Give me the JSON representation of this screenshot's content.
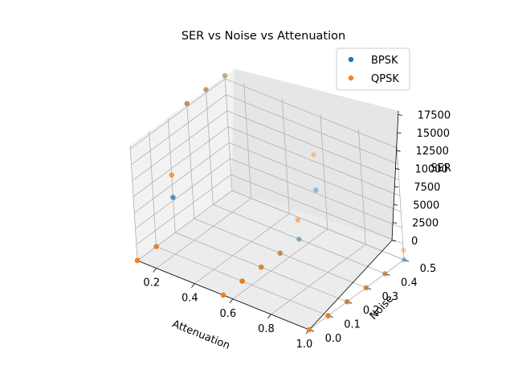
{
  "chart_data": {
    "type": "scatter",
    "projection": "3d",
    "title": "SER vs Noise vs Attenuation",
    "xlabel": "Attenuation",
    "ylabel": "Noise",
    "zlabel": "SER",
    "xlim": [
      0.1,
      1.0
    ],
    "ylim": [
      0.0,
      0.5
    ],
    "zlim": [
      0,
      18000
    ],
    "xticks": [
      "0.2",
      "0.4",
      "0.6",
      "0.8",
      "1.0"
    ],
    "yticks": [
      "0.0",
      "0.1",
      "0.2",
      "0.3",
      "0.4",
      "0.5"
    ],
    "zticks": [
      "0",
      "2500",
      "5000",
      "7500",
      "10000",
      "12500",
      "15000",
      "17500"
    ],
    "grid": true,
    "legend_position": "top-right",
    "series": [
      {
        "name": "BPSK",
        "color": "#1f77b4",
        "points": [
          {
            "x": 0.1,
            "y": 0.0,
            "z": 0
          },
          {
            "x": 0.1,
            "y": 0.1,
            "z": 0
          },
          {
            "x": 0.1,
            "y": 0.2,
            "z": 5500
          },
          {
            "x": 0.1,
            "y": 0.3,
            "z": 18000
          },
          {
            "x": 0.1,
            "y": 0.4,
            "z": 18000
          },
          {
            "x": 0.1,
            "y": 0.5,
            "z": 18000
          },
          {
            "x": 0.55,
            "y": 0.0,
            "z": 0
          },
          {
            "x": 0.55,
            "y": 0.1,
            "z": 0
          },
          {
            "x": 0.55,
            "y": 0.2,
            "z": 0
          },
          {
            "x": 0.55,
            "y": 0.3,
            "z": 0
          },
          {
            "x": 0.55,
            "y": 0.4,
            "z": 0
          },
          {
            "x": 0.55,
            "y": 0.5,
            "z": 5500
          },
          {
            "x": 1.0,
            "y": 0.0,
            "z": 0
          },
          {
            "x": 1.0,
            "y": 0.1,
            "z": 0
          },
          {
            "x": 1.0,
            "y": 0.2,
            "z": 0
          },
          {
            "x": 1.0,
            "y": 0.3,
            "z": 0
          },
          {
            "x": 1.0,
            "y": 0.4,
            "z": 0
          },
          {
            "x": 1.0,
            "y": 0.5,
            "z": 0
          }
        ]
      },
      {
        "name": "QPSK",
        "color": "#ff7f0e",
        "points": [
          {
            "x": 0.1,
            "y": 0.0,
            "z": 0
          },
          {
            "x": 0.1,
            "y": 0.1,
            "z": 0
          },
          {
            "x": 0.1,
            "y": 0.2,
            "z": 9000
          },
          {
            "x": 0.1,
            "y": 0.3,
            "z": 18000
          },
          {
            "x": 0.1,
            "y": 0.4,
            "z": 18000
          },
          {
            "x": 0.1,
            "y": 0.5,
            "z": 18000
          },
          {
            "x": 0.55,
            "y": 0.0,
            "z": 0
          },
          {
            "x": 0.55,
            "y": 0.1,
            "z": 0
          },
          {
            "x": 0.55,
            "y": 0.2,
            "z": 0
          },
          {
            "x": 0.55,
            "y": 0.3,
            "z": 0
          },
          {
            "x": 0.55,
            "y": 0.4,
            "z": 3000
          },
          {
            "x": 0.55,
            "y": 0.5,
            "z": 11000
          },
          {
            "x": 1.0,
            "y": 0.0,
            "z": 0
          },
          {
            "x": 1.0,
            "y": 0.1,
            "z": 0
          },
          {
            "x": 1.0,
            "y": 0.2,
            "z": 0
          },
          {
            "x": 1.0,
            "y": 0.3,
            "z": 0
          },
          {
            "x": 1.0,
            "y": 0.4,
            "z": 0
          },
          {
            "x": 1.0,
            "y": 0.5,
            "z": 1500
          }
        ]
      }
    ]
  }
}
